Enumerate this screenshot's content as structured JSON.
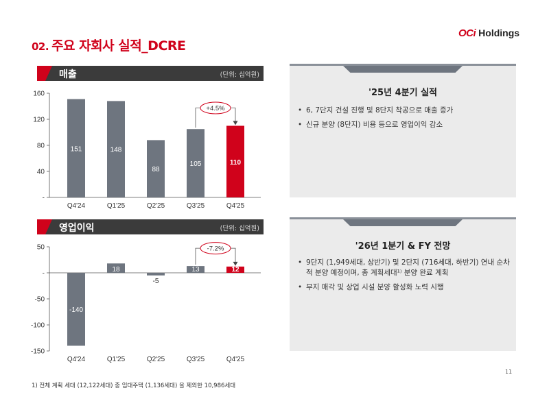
{
  "page": {
    "title_num": "02.",
    "title_text": "주요 자회사 실적_DCRE",
    "logo_mark": "OCi",
    "logo_text": "Holdings",
    "page_number": "11",
    "footnote": "1) 전체 계획 세대 (12,122세대) 중 임대주택 (1,136세대) 을 제외한 10,986세대"
  },
  "colors": {
    "brand": "#d0021b",
    "bar_gray": "#6e757f",
    "header_dark": "#3b3b3b",
    "panel_bg": "#ebebeb"
  },
  "charts": {
    "revenue": {
      "title": "매출",
      "unit": "(단위: 십억원)",
      "change": "+4.5%"
    },
    "op": {
      "title": "영업이익",
      "unit": "(단위: 십억원)",
      "change": "-7.2%"
    }
  },
  "chart_data": [
    {
      "type": "bar",
      "title": "매출",
      "categories": [
        "Q4'24",
        "Q1'25",
        "Q2'25",
        "Q3'25",
        "Q4'25"
      ],
      "values": [
        151,
        148,
        88,
        105,
        110
      ],
      "labels": [
        "151",
        "148",
        "88",
        "105",
        "110"
      ],
      "yticks": [
        "160",
        "120",
        "80",
        "40",
        "-"
      ],
      "ylim": [
        0,
        160
      ],
      "highlight_index": 4,
      "annotation": "+4.5%",
      "grid": false
    },
    {
      "type": "bar",
      "title": "영업이익",
      "categories": [
        "Q4'24",
        "Q1'25",
        "Q2'25",
        "Q3'25",
        "Q4'25"
      ],
      "values": [
        -140,
        18,
        -5,
        13,
        12
      ],
      "labels": [
        "-140",
        "18",
        "-5",
        "13",
        "12"
      ],
      "yticks": [
        "50",
        "-",
        "-50",
        "-100",
        "-150"
      ],
      "ylim": [
        -150,
        50
      ],
      "highlight_index": 4,
      "annotation": "-7.2%",
      "grid": false
    }
  ],
  "panels": {
    "q4": {
      "title": "'25년 4분기 실적",
      "bullets": [
        "6, 7단지 건설 진행 및 8단지 착공으로 매출 증가",
        "신규 분양 (8단지) 비용 등으로 영업이익 감소"
      ]
    },
    "outlook": {
      "title": "'26년 1분기 & FY 전망",
      "bullets": [
        "9단지 (1,949세대, 상반기) 및 2단지 (716세대, 하반기) 연내 순차적 분양 예정이며, 총 계획세대¹⁾ 분양 완료 계획",
        "부지 매각 및 상업 시설 분양 활성화 노력 시행"
      ]
    }
  }
}
